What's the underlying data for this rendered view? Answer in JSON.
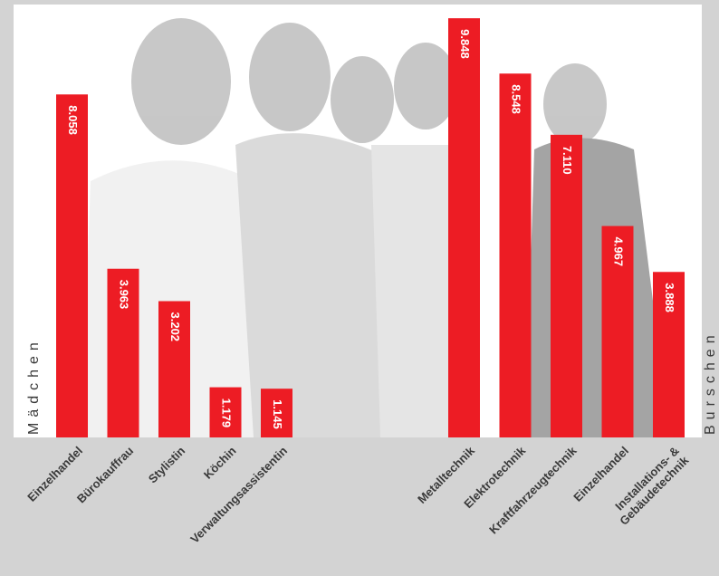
{
  "chart_data": {
    "type": "bar",
    "color": "#ed1c24",
    "ylim": [
      0,
      10000
    ],
    "groups": [
      {
        "name": "Mädchen",
        "categories": [
          "Einzelhandel",
          "Bürokauffrau",
          "Stylistin",
          "Köchin",
          "Verwaltungsassistentin"
        ],
        "values": [
          8058,
          3963,
          3202,
          1179,
          1145
        ],
        "value_labels": [
          "8.058",
          "3.963",
          "3.202",
          "1.179",
          "1.145"
        ]
      },
      {
        "name": "Burschen",
        "categories": [
          "Metalltechnik",
          "Elektrotechnik",
          "Kraftfahrzeugtechnik",
          "Einzelhandel",
          "Installations- &\nGebäudetechnik"
        ],
        "values": [
          9848,
          8548,
          7110,
          4967,
          3888
        ],
        "value_labels": [
          "9.848",
          "8.548",
          "7.110",
          "4.967",
          "3.888"
        ]
      }
    ]
  }
}
